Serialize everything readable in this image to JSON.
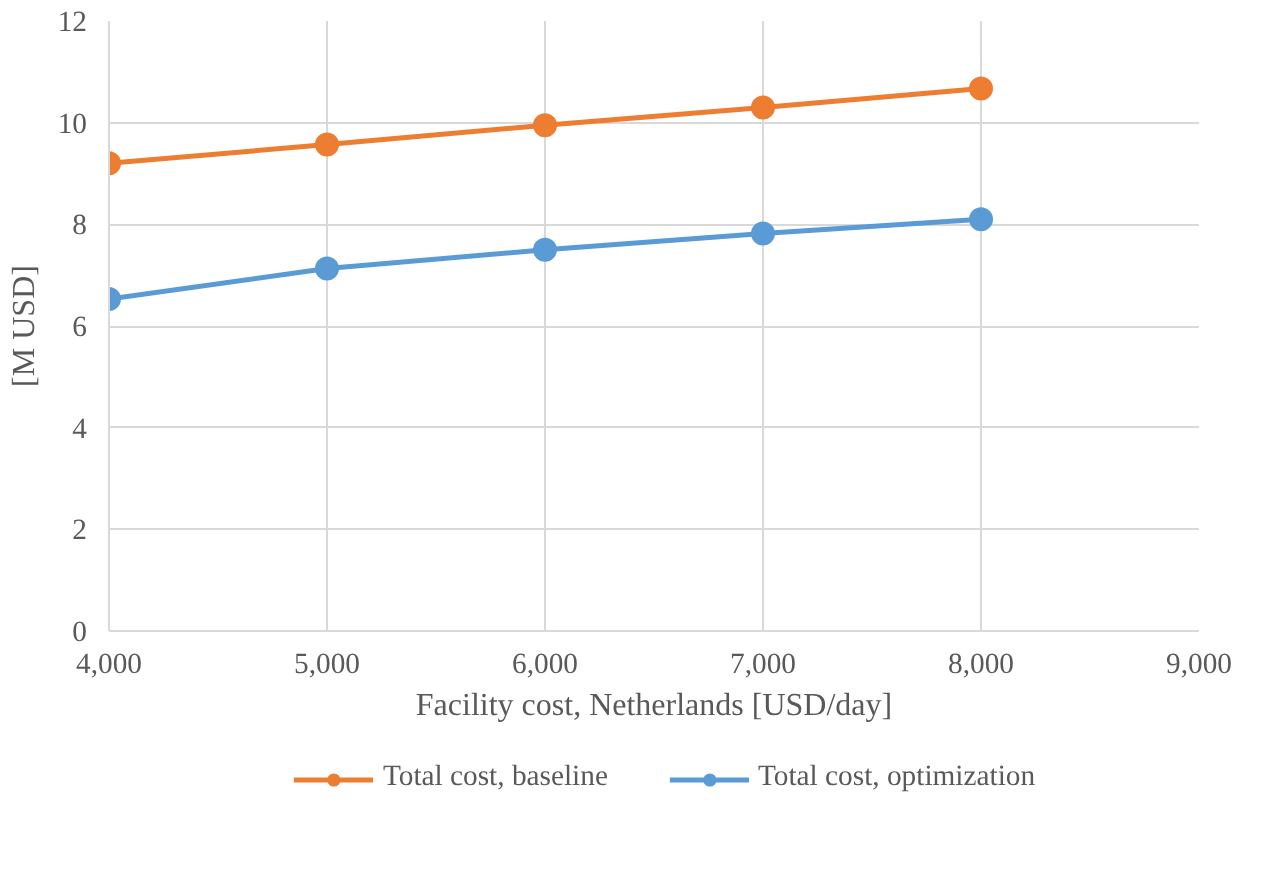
{
  "chart_data": {
    "type": "line",
    "xlabel": "Facility cost, Netherlands [USD/day]",
    "ylabel": "[M USD]",
    "x": [
      4000,
      5000,
      6000,
      7000,
      8000
    ],
    "series": [
      {
        "name": "Total cost, baseline",
        "color": "#ed7d31",
        "values": [
          9.2,
          9.57,
          9.95,
          10.3,
          10.67
        ]
      },
      {
        "name": "Total cost, optimization",
        "color": "#5b9bd5",
        "values": [
          6.53,
          7.13,
          7.5,
          7.82,
          8.1
        ]
      }
    ],
    "xlim": [
      4000,
      9000
    ],
    "xticks": [
      {
        "value": 4000,
        "label": "4,000"
      },
      {
        "value": 5000,
        "label": "5,000"
      },
      {
        "value": 6000,
        "label": "6,000"
      },
      {
        "value": 7000,
        "label": "7,000"
      },
      {
        "value": 8000,
        "label": "8,000"
      },
      {
        "value": 9000,
        "label": "9,000"
      }
    ],
    "ylim": [
      0,
      12
    ],
    "yticks": [
      0,
      2,
      4,
      6,
      8,
      10,
      12
    ],
    "grid": true,
    "legend": "bottom",
    "marker": "circle",
    "line_style": "solid"
  }
}
